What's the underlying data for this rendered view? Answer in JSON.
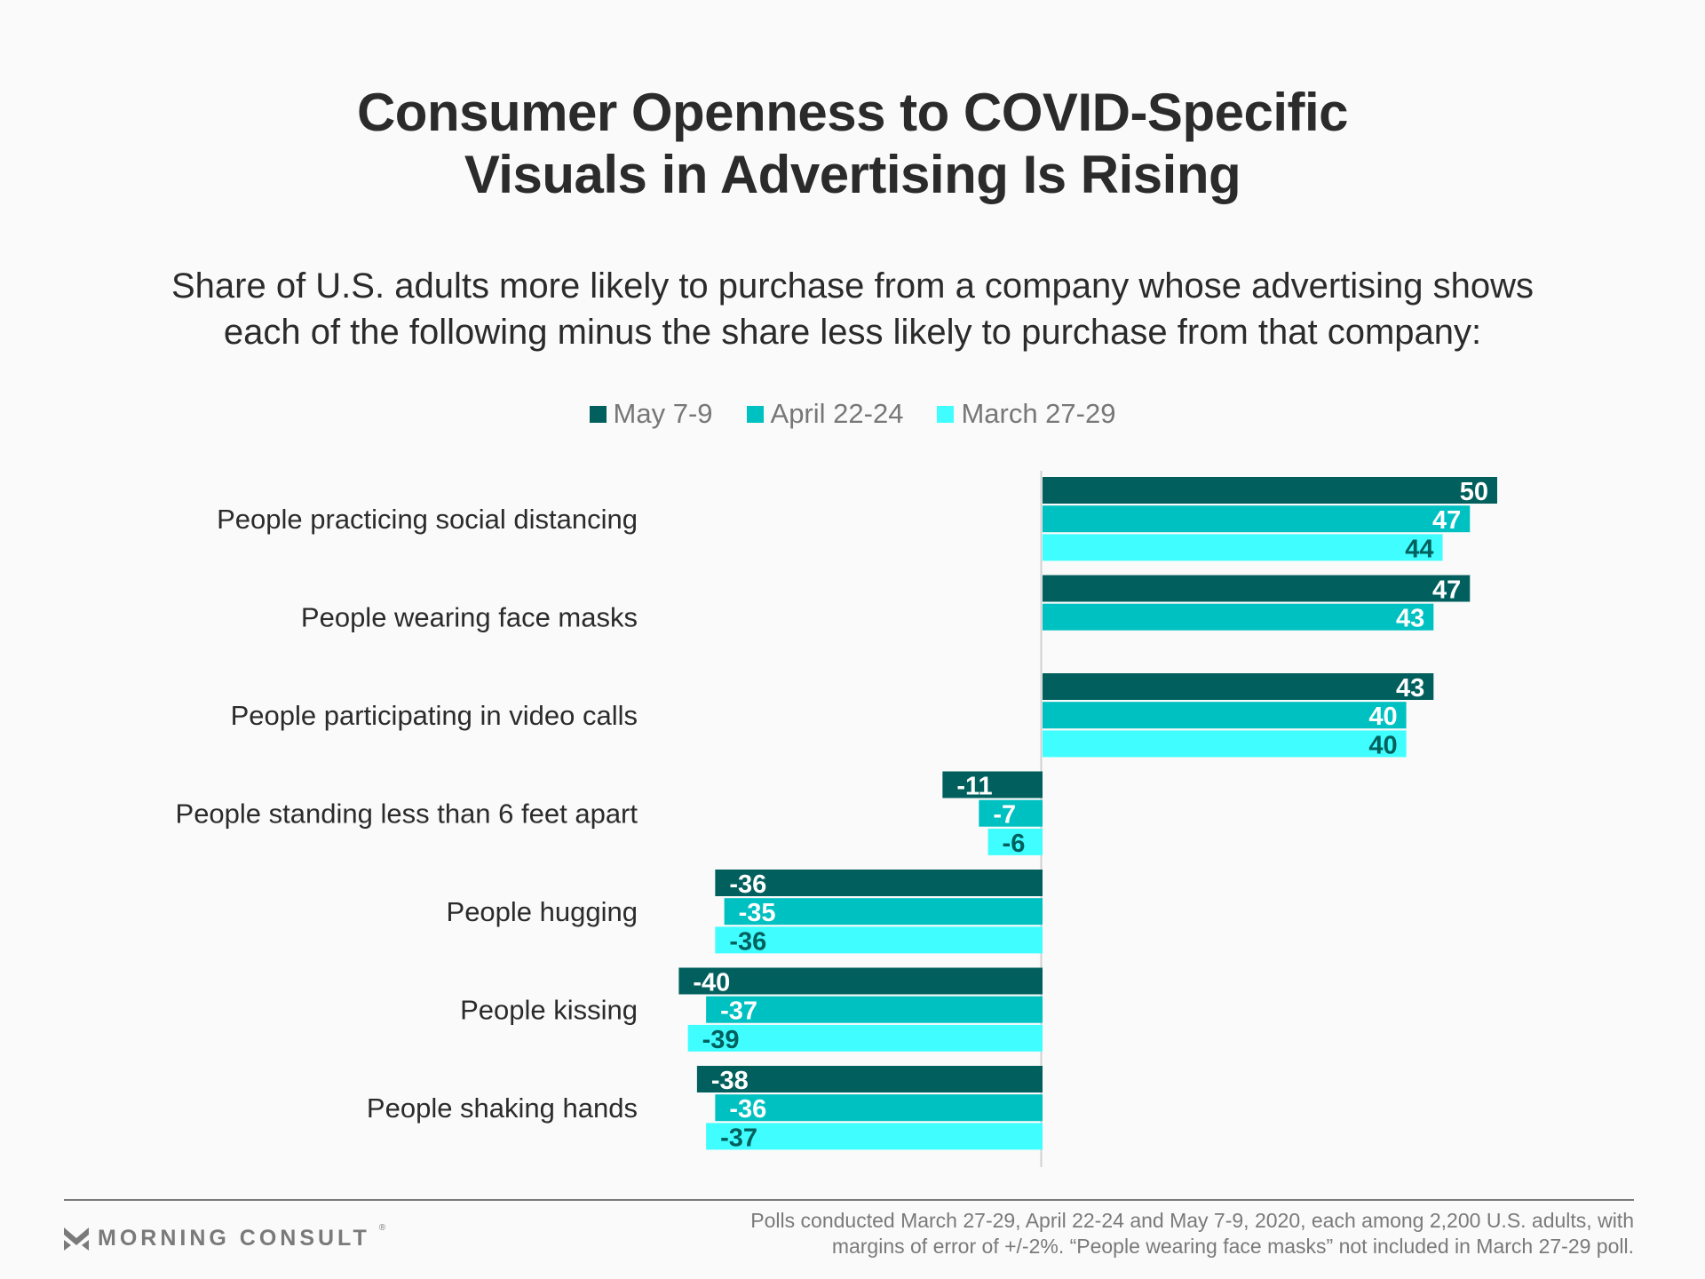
{
  "title_lines": [
    "Consumer Openness to COVID-Specific",
    "Visuals in Advertising Is Rising"
  ],
  "subtitle_lines": [
    "Share of U.S. adults more likely to purchase from a company whose advertising shows",
    "each of the following minus the share less likely to purchase from that company:"
  ],
  "colors": {
    "may": "#01605e",
    "april": "#00c1c1",
    "march": "#40feff",
    "axis": "#d0d0d0",
    "label_light": "#ffffff",
    "label_dark": "#01605e",
    "label_teal": "#00c1c1"
  },
  "chart_data": {
    "type": "bar",
    "orientation": "horizontal",
    "title": "Consumer Openness to COVID-Specific Visuals in Advertising Is Rising",
    "subtitle": "Share of U.S. adults more likely to purchase from a company whose advertising shows each of the following minus the share less likely to purchase from that company:",
    "xlabel": "",
    "ylabel": "",
    "xlim": [
      -40,
      50
    ],
    "grid": false,
    "legend_position": "top-center",
    "categories": [
      "People practicing social distancing",
      "People wearing face masks",
      "People participating in video calls",
      "People standing less than 6 feet apart",
      "People hugging",
      "People kissing",
      "People shaking hands"
    ],
    "series": [
      {
        "name": "May 7-9",
        "color": "#01605e",
        "values": [
          50,
          47,
          43,
          -11,
          -36,
          -40,
          -38
        ]
      },
      {
        "name": "April 22-24",
        "color": "#00c1c1",
        "values": [
          47,
          43,
          40,
          -7,
          -35,
          -37,
          -36
        ]
      },
      {
        "name": "March 27-29",
        "color": "#40feff",
        "values": [
          44,
          null,
          40,
          -6,
          -36,
          -39,
          -37
        ]
      }
    ]
  },
  "footer": {
    "logo_text": "MORNING CONSULT",
    "logo_mark": "®",
    "source_lines": [
      "Polls conducted March 27-29, April 22-24 and May 7-9, 2020, each among 2,200 U.S. adults, with",
      "margins of error of +/-2%. “People wearing face masks” not included in March 27-29 poll."
    ]
  }
}
